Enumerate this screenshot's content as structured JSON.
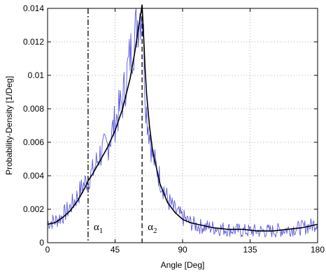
{
  "chart_data": {
    "type": "line",
    "title": "",
    "xlabel": "Angle [Deg]",
    "ylabel": "Probability-Density [1/Deg]",
    "xlim": [
      0,
      180
    ],
    "ylim": [
      0,
      0.014
    ],
    "xticks": [
      0,
      45,
      90,
      135,
      180
    ],
    "xtick_labels": [
      "0",
      "45",
      "90",
      "135",
      "180"
    ],
    "yticks": [
      0,
      0.002,
      0.004,
      0.006,
      0.008,
      0.01,
      0.012,
      0.014
    ],
    "ytick_labels": [
      "0",
      "0.002",
      "0.004",
      "0.006",
      "0.008",
      "0.01",
      "0.012",
      "0.014"
    ],
    "grid": true,
    "annotations": [
      {
        "id": "alpha1",
        "symbol": "α",
        "subscript": "1",
        "x": 27,
        "linestyle": "dash-dot"
      },
      {
        "id": "alpha2",
        "symbol": "α",
        "subscript": "2",
        "x": 63,
        "linestyle": "dashed"
      }
    ],
    "series": [
      {
        "style": "noisy",
        "color": "#5a5ae0",
        "x": [
          0,
          5,
          10,
          15,
          20,
          25,
          30,
          35,
          40,
          45,
          50,
          55,
          58,
          60,
          62,
          63,
          64,
          65,
          66,
          68,
          70,
          75,
          80,
          85,
          90,
          95,
          100,
          110,
          120,
          130,
          140,
          150,
          160,
          170,
          175,
          180
        ],
        "y": [
          0.0012,
          0.0013,
          0.0016,
          0.0021,
          0.0028,
          0.0036,
          0.0042,
          0.0053,
          0.0058,
          0.0072,
          0.0085,
          0.0112,
          0.0122,
          0.0133,
          0.0139,
          0.0142,
          0.012,
          0.0092,
          0.0078,
          0.0065,
          0.0052,
          0.0038,
          0.0026,
          0.0019,
          0.0015,
          0.0012,
          0.001,
          0.0009,
          0.0008,
          0.0007,
          0.0007,
          0.0007,
          0.0008,
          0.0009,
          0.001,
          0.0012
        ]
      },
      {
        "style": "smooth",
        "color": "#000000",
        "x": [
          0,
          5,
          10,
          15,
          20,
          25,
          27,
          30,
          35,
          40,
          45,
          50,
          55,
          58,
          60,
          62,
          63,
          64,
          65,
          66,
          68,
          70,
          75,
          80,
          85,
          90,
          95,
          100,
          110,
          120,
          130,
          140,
          150,
          160,
          170,
          180
        ],
        "y": [
          0.0011,
          0.0012,
          0.0015,
          0.0019,
          0.0025,
          0.0033,
          0.0037,
          0.0041,
          0.0049,
          0.0057,
          0.0067,
          0.008,
          0.0098,
          0.0113,
          0.0125,
          0.0136,
          0.0142,
          0.0124,
          0.0104,
          0.0089,
          0.0069,
          0.0055,
          0.0035,
          0.0024,
          0.0018,
          0.0014,
          0.0012,
          0.0011,
          0.0009,
          0.0008,
          0.0008,
          0.0007,
          0.0007,
          0.0008,
          0.0009,
          0.0011
        ]
      }
    ]
  }
}
